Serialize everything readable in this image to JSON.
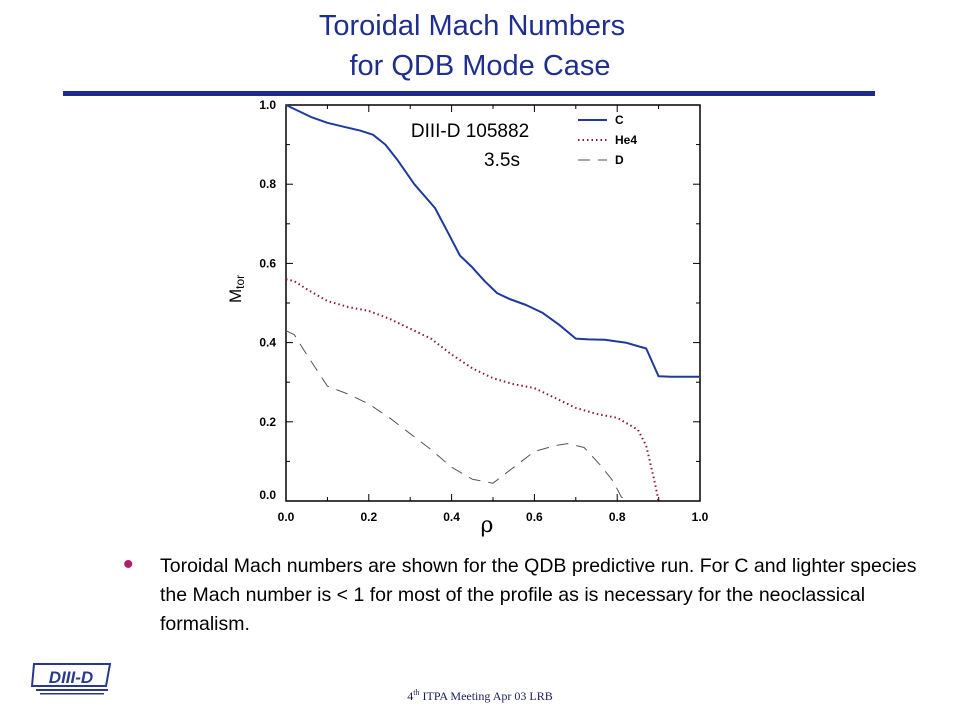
{
  "slide": {
    "title_line1": "Toroidal Mach Numbers",
    "title_line2": "for QDB Mode Case",
    "bullet": "Toroidal Mach numbers are shown for the QDB predictive run. For C and lighter species the Mach number is < 1 for most of the profile as is necessary for the neoclassical formalism.",
    "footer_ord": "4",
    "footer_sup": "th",
    "footer_rest": " ITPA Meeting  Apr 03  LRB",
    "logo_text": "DIII-D"
  },
  "colors": {
    "title": "#1f2f8f",
    "rule": "#1f2a8a",
    "bullet": "#b0206a",
    "C": "#1f3a9a",
    "He4": "#8b1a2a",
    "D": "#555555"
  },
  "chart_data": {
    "type": "line",
    "annotation_line1": "DIII-D  105882",
    "annotation_line2": "3.5s",
    "xlabel": "ρ",
    "ylabel_main": "M",
    "ylabel_sub": "tor",
    "xlim": [
      0,
      1
    ],
    "ylim": [
      0,
      1
    ],
    "xticks": [
      "0.0",
      "0.2",
      "0.4",
      "0.6",
      "0.8",
      "1.0"
    ],
    "yticks": [
      "0.0",
      "0.2",
      "0.4",
      "0.6",
      "0.8",
      "1.0"
    ],
    "legend_position": "top-right",
    "series": [
      {
        "name": "C",
        "style": "solid",
        "x": [
          0.0,
          0.02,
          0.06,
          0.1,
          0.14,
          0.18,
          0.21,
          0.24,
          0.27,
          0.31,
          0.36,
          0.39,
          0.42,
          0.45,
          0.48,
          0.51,
          0.54,
          0.58,
          0.62,
          0.66,
          0.7,
          0.73,
          0.77,
          0.82,
          0.87,
          0.9,
          0.93,
          0.96,
          1.0
        ],
        "y": [
          1.0,
          0.99,
          0.97,
          0.955,
          0.945,
          0.935,
          0.925,
          0.9,
          0.86,
          0.8,
          0.74,
          0.68,
          0.62,
          0.59,
          0.555,
          0.525,
          0.51,
          0.495,
          0.475,
          0.445,
          0.41,
          0.408,
          0.407,
          0.4,
          0.385,
          0.315,
          0.314,
          0.314,
          0.314
        ]
      },
      {
        "name": "He4",
        "style": "dotted",
        "x": [
          0.0,
          0.02,
          0.05,
          0.1,
          0.15,
          0.2,
          0.25,
          0.3,
          0.35,
          0.4,
          0.45,
          0.5,
          0.55,
          0.6,
          0.65,
          0.7,
          0.75,
          0.8,
          0.85,
          0.87,
          0.89,
          0.9,
          0.91
        ],
        "y": [
          0.56,
          0.555,
          0.535,
          0.505,
          0.49,
          0.48,
          0.46,
          0.435,
          0.41,
          0.37,
          0.335,
          0.31,
          0.295,
          0.285,
          0.26,
          0.235,
          0.22,
          0.21,
          0.18,
          0.14,
          0.05,
          0.0,
          0.0
        ]
      },
      {
        "name": "D",
        "style": "dashed",
        "x": [
          0.0,
          0.02,
          0.05,
          0.1,
          0.15,
          0.2,
          0.25,
          0.3,
          0.35,
          0.4,
          0.45,
          0.5,
          0.55,
          0.6,
          0.65,
          0.68,
          0.72,
          0.76,
          0.79,
          0.81,
          0.83
        ],
        "y": [
          0.43,
          0.42,
          0.37,
          0.29,
          0.27,
          0.245,
          0.21,
          0.17,
          0.13,
          0.085,
          0.055,
          0.045,
          0.085,
          0.125,
          0.14,
          0.145,
          0.135,
          0.09,
          0.05,
          0.01,
          0.0
        ]
      }
    ]
  }
}
